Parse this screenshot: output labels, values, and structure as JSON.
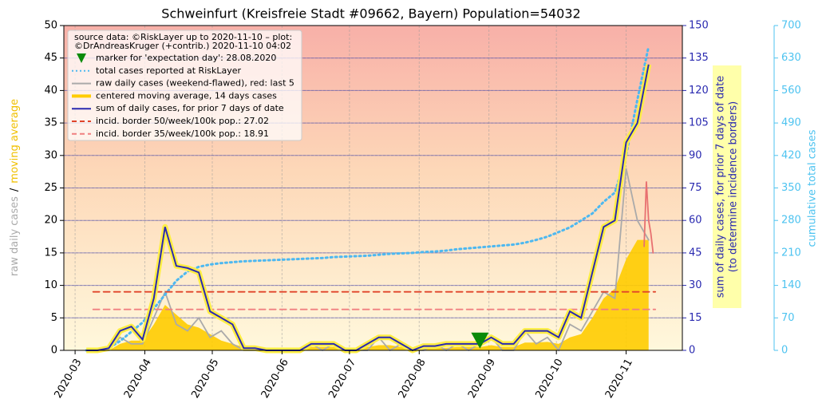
{
  "chart_data": {
    "type": "line",
    "title": "Schweinfurt (Kreisfreie Stadt #09662, Bayern) Population=54032",
    "legend_source": [
      "source data: ©RiskLayer up to 2020-11-10 – plot:",
      "©DrAndreasKruger (+contrib.) 2020-11-10 04:02"
    ],
    "ylabel_raw": "raw daily cases",
    "ylabel_sep": "/",
    "ylabel_ma": "moving average",
    "y2label": [
      "sum of daily cases, for prior 7 days of date",
      "(to determine incidence borders)"
    ],
    "y3label": "cumulative total cases",
    "xlim": [
      -5,
      270
    ],
    "xticks": [
      {
        "value": 0,
        "label": "2020-03"
      },
      {
        "value": 31,
        "label": "2020-04"
      },
      {
        "value": 61,
        "label": "2020-05"
      },
      {
        "value": 92,
        "label": "2020-06"
      },
      {
        "value": 122,
        "label": "2020-07"
      },
      {
        "value": 153,
        "label": "2020-08"
      },
      {
        "value": 184,
        "label": "2020-09"
      },
      {
        "value": 214,
        "label": "2020-10"
      },
      {
        "value": 245,
        "label": "2020-11"
      }
    ],
    "ylim": [
      0,
      50
    ],
    "yticks": [
      0,
      5,
      10,
      15,
      20,
      25,
      30,
      35,
      40,
      45,
      50
    ],
    "y2lim": [
      0,
      150
    ],
    "y2ticks": [
      0,
      15,
      30,
      45,
      60,
      75,
      90,
      105,
      120,
      135,
      150
    ],
    "y2color": "#2a2ab0",
    "y3lim": [
      0,
      700
    ],
    "y3ticks": [
      0,
      70,
      140,
      210,
      280,
      350,
      420,
      490,
      560,
      630,
      700
    ],
    "y3color": "#4dc3f0",
    "grid": true,
    "x": [
      5,
      10,
      15,
      20,
      25,
      30,
      35,
      40,
      45,
      50,
      55,
      60,
      65,
      70,
      75,
      80,
      85,
      90,
      95,
      100,
      105,
      110,
      115,
      120,
      125,
      130,
      135,
      140,
      145,
      150,
      155,
      160,
      165,
      170,
      175,
      180,
      185,
      190,
      195,
      200,
      205,
      210,
      215,
      220,
      225,
      230,
      235,
      240,
      245,
      250,
      255
    ],
    "series": [
      {
        "name": "marker for 'expectation day': 28.08.2020",
        "color": "#0a8a0a",
        "style": "marker",
        "axis": "y",
        "x": [
          180
        ],
        "values": [
          1.5
        ]
      },
      {
        "name": "total cases reported at RiskLayer",
        "color": "#4db8f0",
        "style": "dotted",
        "axis": "y3",
        "values": [
          0,
          1,
          5,
          20,
          40,
          60,
          90,
          120,
          150,
          170,
          180,
          185,
          188,
          190,
          192,
          193,
          194,
          195,
          196,
          197,
          198,
          199,
          201,
          202,
          203,
          204,
          206,
          208,
          209,
          210,
          212,
          213,
          215,
          218,
          220,
          222,
          224,
          226,
          228,
          232,
          238,
          245,
          255,
          265,
          280,
          295,
          320,
          340,
          420,
          540,
          655
        ]
      },
      {
        "name": "raw daily cases (weekend-flawed), red: last 5",
        "color": "#aaaaaa",
        "style": "line",
        "axis": "y",
        "values": [
          0,
          0,
          0,
          2,
          1,
          1,
          5,
          9,
          4,
          3,
          5,
          2,
          3,
          1,
          0,
          0,
          0,
          0,
          0,
          0,
          1,
          0,
          1,
          0,
          0,
          0,
          2,
          0,
          1,
          0,
          0,
          1,
          0,
          1,
          0,
          1,
          2,
          0,
          0,
          3,
          1,
          2,
          0,
          4,
          3,
          6,
          9,
          8,
          28,
          20,
          17
        ]
      },
      {
        "name": "centered moving average, 14 days cases",
        "color": "#ffcc00",
        "style": "area",
        "axis": "y",
        "values": [
          0,
          0,
          0,
          1,
          1.5,
          1.5,
          4,
          7,
          5.5,
          4,
          3.5,
          2.5,
          1.5,
          1,
          0.5,
          0.3,
          0.2,
          0.2,
          0.2,
          0.3,
          0.5,
          0.5,
          0.5,
          0.3,
          0.3,
          0.5,
          0.8,
          0.8,
          0.5,
          0.3,
          0.3,
          0.4,
          0.4,
          0.5,
          0.5,
          0.5,
          0.8,
          0.5,
          0.5,
          1.2,
          1.2,
          1.3,
          1,
          2,
          2.5,
          5,
          8,
          9.5,
          14,
          17,
          17
        ]
      },
      {
        "name": "sum of daily cases, for prior 7 days of date",
        "color": "#2a2ab0",
        "style": "halo",
        "axis": "y2",
        "values": [
          0,
          0,
          1,
          9,
          11,
          5,
          24,
          57,
          39,
          38,
          36,
          18,
          15,
          12,
          1,
          1,
          0,
          0,
          0,
          0,
          3,
          3,
          3,
          0,
          0,
          3,
          6,
          6,
          3,
          0,
          2,
          2,
          3,
          3,
          3,
          3,
          6,
          3,
          3,
          9,
          9,
          9,
          6,
          18,
          15,
          36,
          57,
          60,
          96,
          105,
          132
        ]
      },
      {
        "name": "incid. border 50/week/100k pop.: 27.02",
        "color": "#e0442a",
        "style": "dashed",
        "axis": "y2",
        "x": [
          8,
          258
        ],
        "values": [
          27.02,
          27.02
        ]
      },
      {
        "name": "incid. border 35/week/100k pop.: 18.91",
        "color": "#f08080",
        "style": "dashed",
        "axis": "y2",
        "x": [
          8,
          258
        ],
        "values": [
          18.91,
          18.91
        ]
      },
      {
        "color": "#e87070",
        "style": "line",
        "axis": "y",
        "x": [
          253,
          254,
          255,
          256,
          257
        ],
        "values": [
          16,
          26,
          20,
          18,
          15
        ]
      }
    ]
  }
}
